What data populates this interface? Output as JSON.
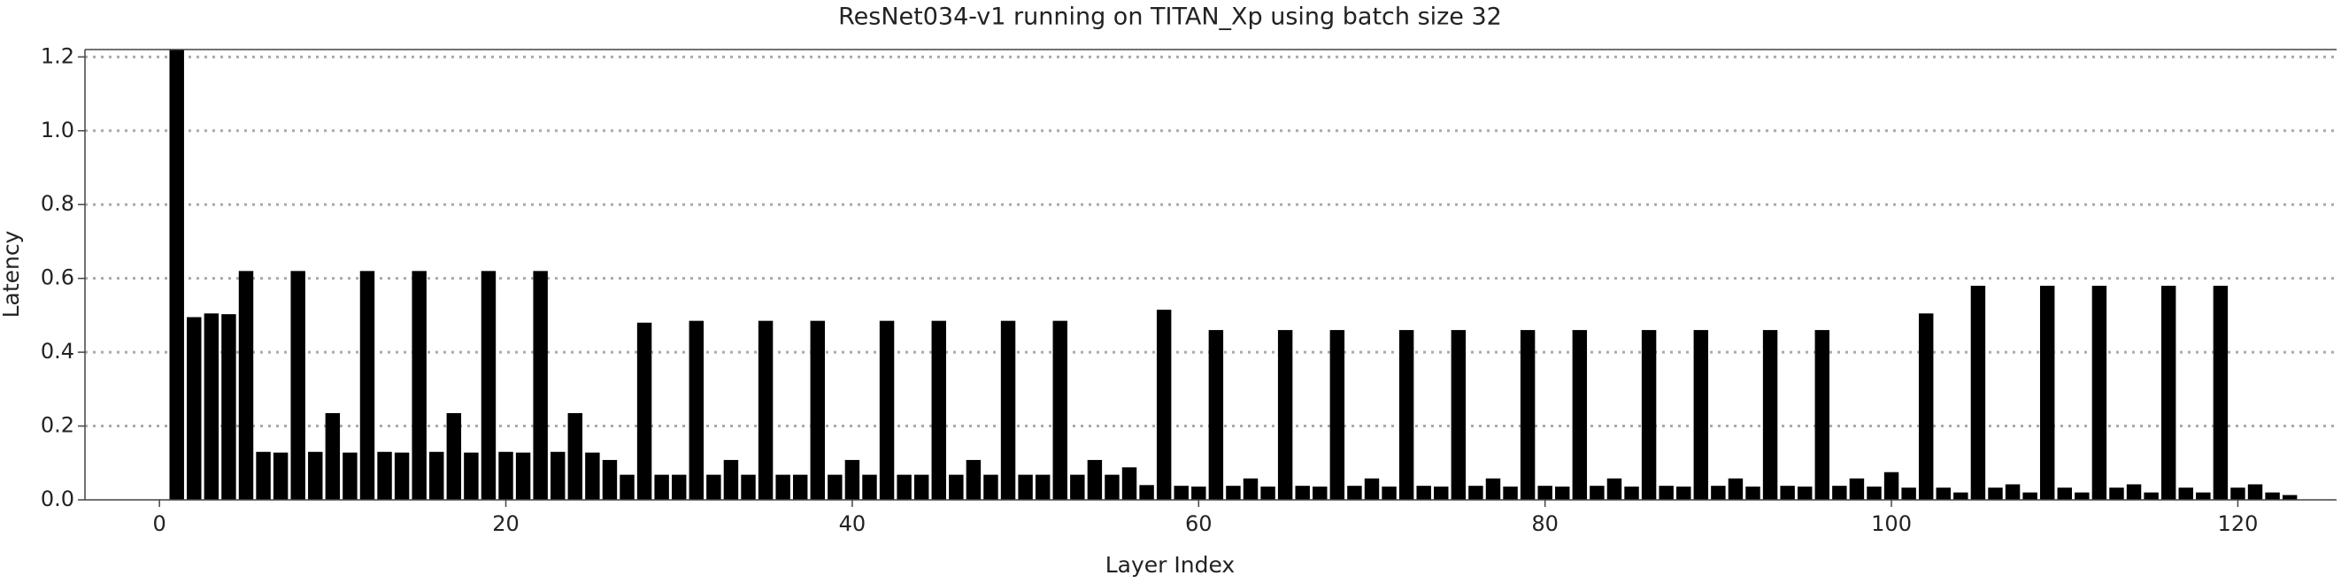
{
  "chart_data": {
    "type": "bar",
    "title": "ResNet034-v1 running on TITAN_Xp using batch size 32",
    "x_label": "Layer Index",
    "y_label": "Latency",
    "x": [
      1,
      2,
      3,
      4,
      5,
      6,
      7,
      8,
      9,
      10,
      11,
      12,
      13,
      14,
      15,
      16,
      17,
      18,
      19,
      20,
      21,
      22,
      23,
      24,
      25,
      26,
      27,
      28,
      29,
      30,
      31,
      32,
      33,
      34,
      35,
      36,
      37,
      38,
      39,
      40,
      41,
      42,
      43,
      44,
      45,
      46,
      47,
      48,
      49,
      50,
      51,
      52,
      53,
      54,
      55,
      56,
      57,
      58,
      59,
      60,
      61,
      62,
      63,
      64,
      65,
      66,
      67,
      68,
      69,
      70,
      71,
      72,
      73,
      74,
      75,
      76,
      77,
      78,
      79,
      80,
      81,
      82,
      83,
      84,
      85,
      86,
      87,
      88,
      89,
      90,
      91,
      92,
      93,
      94,
      95,
      96,
      97,
      98,
      99,
      100,
      101,
      102,
      103,
      104,
      105,
      106,
      107,
      108,
      109,
      110,
      111,
      112,
      113,
      114,
      115,
      116,
      117,
      118,
      119,
      120,
      121,
      122,
      123
    ],
    "values": [
      1.22,
      0.495,
      0.505,
      0.503,
      0.62,
      0.13,
      0.128,
      0.62,
      0.13,
      0.235,
      0.128,
      0.62,
      0.13,
      0.128,
      0.62,
      0.13,
      0.235,
      0.128,
      0.62,
      0.13,
      0.128,
      0.62,
      0.13,
      0.235,
      0.128,
      0.108,
      0.068,
      0.48,
      0.068,
      0.068,
      0.485,
      0.068,
      0.108,
      0.068,
      0.485,
      0.068,
      0.068,
      0.485,
      0.068,
      0.108,
      0.068,
      0.485,
      0.068,
      0.068,
      0.485,
      0.068,
      0.108,
      0.068,
      0.485,
      0.068,
      0.068,
      0.485,
      0.068,
      0.108,
      0.068,
      0.088,
      0.04,
      0.515,
      0.038,
      0.036,
      0.46,
      0.038,
      0.058,
      0.036,
      0.46,
      0.038,
      0.036,
      0.46,
      0.038,
      0.058,
      0.036,
      0.46,
      0.038,
      0.036,
      0.46,
      0.038,
      0.058,
      0.036,
      0.46,
      0.038,
      0.036,
      0.46,
      0.038,
      0.058,
      0.036,
      0.46,
      0.038,
      0.036,
      0.46,
      0.038,
      0.058,
      0.036,
      0.46,
      0.038,
      0.036,
      0.46,
      0.038,
      0.058,
      0.036,
      0.075,
      0.033,
      0.505,
      0.033,
      0.02,
      0.58,
      0.033,
      0.042,
      0.02,
      0.58,
      0.033,
      0.02,
      0.58,
      0.033,
      0.042,
      0.02,
      0.58,
      0.033,
      0.02,
      0.58,
      0.033,
      0.042,
      0.02,
      0.013
    ],
    "color": "#000000",
    "xlim": [
      -4.3,
      125.7
    ],
    "xticks": [
      0,
      20,
      40,
      60,
      80,
      100,
      120
    ],
    "ylim": [
      0,
      1.22
    ],
    "yticks": [
      {
        "value": 0,
        "label": "0.0"
      },
      0.2,
      0.4,
      0.6,
      0.8,
      {
        "value": 1,
        "label": "1.0"
      },
      1.2
    ],
    "grid": true
  }
}
